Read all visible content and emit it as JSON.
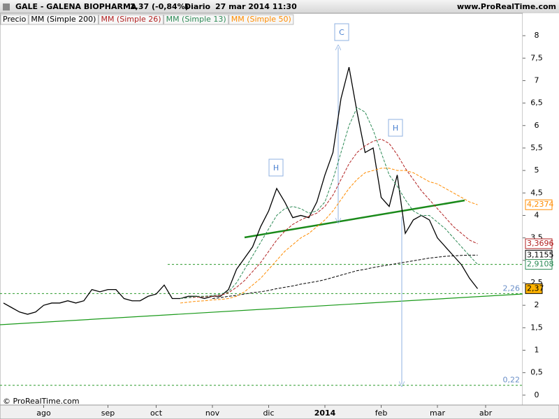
{
  "chart_data": {
    "type": "line",
    "title": "GALE - GALENA BIOPHARMA",
    "price_label": "2,37 (-0,84%)",
    "period": "Diario",
    "date": "27 mar 2014 11:30",
    "site": "www.ProRealTime.com",
    "copyright": "© ProRealTime.com",
    "categories": [
      null,
      null,
      null,
      null,
      null,
      "ago",
      null,
      null,
      null,
      null,
      null,
      null,
      null,
      "sep",
      null,
      null,
      null,
      null,
      null,
      "oct",
      null,
      null,
      null,
      null,
      null,
      null,
      "nov",
      null,
      null,
      null,
      null,
      null,
      null,
      "dic",
      null,
      null,
      null,
      null,
      null,
      null,
      "2014",
      null,
      null,
      null,
      null,
      null,
      null,
      "feb",
      null,
      null,
      null,
      null,
      null,
      null,
      "mar",
      null,
      null,
      null,
      null,
      null,
      "abr"
    ],
    "series": [
      {
        "name": "Precio",
        "color": "#000000",
        "last_label": "2,37",
        "values": [
          2.05,
          1.95,
          1.85,
          1.8,
          1.85,
          2.0,
          2.05,
          2.05,
          2.1,
          2.05,
          2.1,
          2.35,
          2.3,
          2.35,
          2.35,
          2.15,
          2.1,
          2.1,
          2.2,
          2.25,
          2.45,
          2.15,
          2.15,
          2.2,
          2.2,
          2.15,
          2.2,
          2.2,
          2.35,
          2.8,
          3.05,
          3.3,
          3.75,
          4.1,
          4.6,
          4.3,
          3.95,
          4.0,
          3.95,
          4.3,
          4.9,
          5.4,
          6.6,
          7.3,
          6.3,
          5.4,
          5.5,
          4.4,
          4.2,
          4.9,
          3.6,
          3.9,
          4.0,
          3.9,
          3.5,
          3.3,
          3.1,
          2.9,
          2.6,
          2.37,
          null
        ]
      },
      {
        "name": "MM (Simple 200)",
        "color": "#000000",
        "last_label": "3,1155",
        "values": [
          null,
          null,
          null,
          null,
          null,
          null,
          null,
          null,
          null,
          null,
          null,
          null,
          null,
          null,
          null,
          null,
          null,
          null,
          null,
          null,
          null,
          null,
          null,
          null,
          null,
          null,
          2.15,
          2.17,
          2.2,
          2.22,
          2.25,
          2.28,
          2.3,
          2.33,
          2.37,
          2.4,
          2.43,
          2.47,
          2.5,
          2.53,
          2.57,
          2.62,
          2.67,
          2.72,
          2.77,
          2.8,
          2.84,
          2.87,
          2.9,
          2.93,
          2.96,
          2.99,
          3.02,
          3.05,
          3.07,
          3.09,
          3.1,
          3.11,
          3.115,
          3.1155,
          null
        ]
      },
      {
        "name": "MM (Simple 26)",
        "color": "#b22222",
        "last_label": "3,3696",
        "values": [
          null,
          null,
          null,
          null,
          null,
          null,
          null,
          null,
          null,
          null,
          null,
          null,
          null,
          null,
          null,
          null,
          null,
          null,
          null,
          null,
          null,
          null,
          2.15,
          2.17,
          2.18,
          2.19,
          2.2,
          2.22,
          2.28,
          2.4,
          2.55,
          2.75,
          2.95,
          3.2,
          3.45,
          3.65,
          3.8,
          3.9,
          3.98,
          4.05,
          4.2,
          4.45,
          4.8,
          5.15,
          5.4,
          5.55,
          5.65,
          5.7,
          5.6,
          5.35,
          5.05,
          4.8,
          4.55,
          4.35,
          4.15,
          3.95,
          3.75,
          3.6,
          3.45,
          3.3696,
          null
        ]
      },
      {
        "name": "MM (Simple 13)",
        "color": "#2e8b57",
        "last_label": "2,9108",
        "values": [
          null,
          null,
          null,
          null,
          null,
          null,
          null,
          null,
          null,
          null,
          null,
          null,
          null,
          null,
          null,
          null,
          null,
          null,
          null,
          null,
          null,
          null,
          2.15,
          2.17,
          2.2,
          2.2,
          2.22,
          2.25,
          2.3,
          2.5,
          2.8,
          3.1,
          3.4,
          3.7,
          4.0,
          4.15,
          4.2,
          4.15,
          4.05,
          4.1,
          4.3,
          4.8,
          5.4,
          6.0,
          6.4,
          6.3,
          5.9,
          5.4,
          4.9,
          4.65,
          4.35,
          4.1,
          4.0,
          4.0,
          3.85,
          3.7,
          3.5,
          3.3,
          3.1,
          2.9108,
          null
        ]
      },
      {
        "name": "MM (Simple 50)",
        "color": "#ff8c00",
        "last_label": "4,2374",
        "values": [
          null,
          null,
          null,
          null,
          null,
          null,
          null,
          null,
          null,
          null,
          null,
          null,
          null,
          null,
          null,
          null,
          null,
          null,
          null,
          null,
          null,
          null,
          2.05,
          2.07,
          2.09,
          2.1,
          2.12,
          2.13,
          2.15,
          2.2,
          2.3,
          2.45,
          2.6,
          2.8,
          3.0,
          3.2,
          3.35,
          3.5,
          3.6,
          3.75,
          3.9,
          4.1,
          4.35,
          4.6,
          4.8,
          4.95,
          5.0,
          5.05,
          5.05,
          5.0,
          5.0,
          4.95,
          4.85,
          4.75,
          4.7,
          4.6,
          4.5,
          4.4,
          4.3,
          4.2374,
          null
        ]
      }
    ],
    "levels": [
      {
        "value": 2.26,
        "label": "2,26"
      },
      {
        "value": 0.22,
        "label": "0,22"
      },
      {
        "value": 2.91
      }
    ],
    "annotations": [
      "H",
      "C",
      "H"
    ],
    "ylim": [
      -0.22,
      8.25
    ],
    "yticks": [
      0,
      {
        "value": 0.5,
        "label": "0,5"
      },
      1,
      {
        "value": 1.5,
        "label": "1,5"
      },
      2,
      {
        "value": 2.5,
        "label": "2,5"
      },
      3,
      {
        "value": 3.5,
        "label": "3,5"
      },
      4,
      {
        "value": 4.5,
        "label": "4,5"
      },
      5,
      {
        "value": 5.5,
        "label": "5,5"
      },
      6,
      {
        "value": 6.5,
        "label": "6,5"
      },
      7,
      {
        "value": 7.5,
        "label": "7,5"
      },
      8
    ]
  }
}
